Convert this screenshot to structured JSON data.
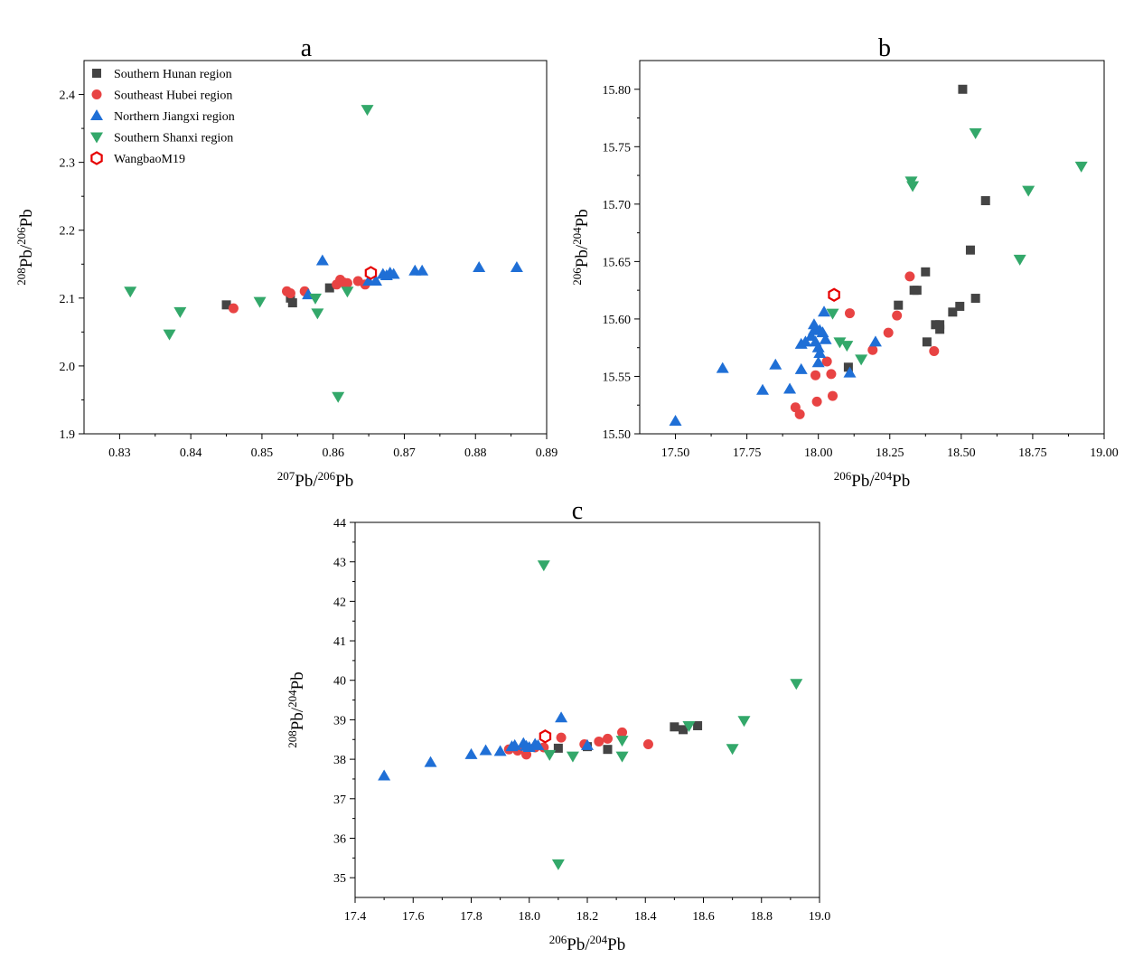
{
  "legend": [
    {
      "key": "hunan",
      "label": "Southern Hunan region",
      "marker": "square",
      "color": "#444444"
    },
    {
      "key": "hubei",
      "label": "Southeast Hubei region",
      "marker": "circle",
      "color": "#e84343"
    },
    {
      "key": "jiangxi",
      "label": "Northern Jiangxi region",
      "marker": "triangle-up",
      "color": "#1f6fd6"
    },
    {
      "key": "shanxi",
      "label": "Southern Shanxi region",
      "marker": "triangle-down",
      "color": "#33a86a"
    },
    {
      "key": "wangbao",
      "label": "WangbaoM19",
      "marker": "hexagon-open",
      "color": "#e60000"
    }
  ],
  "chart_data": [
    {
      "id": "a",
      "type": "scatter",
      "title": "a",
      "xlabel": {
        "base": "Pb/",
        "sup1": "207",
        "sup2": "206",
        "tail": "Pb"
      },
      "ylabel": {
        "sup1": "208",
        "base": "Pb/",
        "sup2": "206",
        "tail": "Pb"
      },
      "xlim": [
        0.825,
        0.89
      ],
      "ylim": [
        1.9,
        2.45
      ],
      "xticks": [
        0.83,
        0.84,
        0.85,
        0.86,
        0.87,
        0.88,
        0.89
      ],
      "xtick_labels": [
        "0.83",
        "0.84",
        "0.85",
        "0.86",
        "0.87",
        "0.88",
        "0.89"
      ],
      "yticks": [
        1.9,
        2.0,
        2.1,
        2.2,
        2.3,
        2.4
      ],
      "ytick_labels": [
        "1.9",
        "2.0",
        "2.1",
        "2.2",
        "2.3",
        "2.4"
      ],
      "legend_position": "top-left",
      "grid": false,
      "series": [
        {
          "key": "hunan",
          "name": "Southern Hunan region",
          "points": [
            [
              0.845,
              2.09
            ],
            [
              0.854,
              2.1
            ],
            [
              0.8543,
              2.093
            ],
            [
              0.8595,
              2.115
            ]
          ]
        },
        {
          "key": "hubei",
          "name": "Southeast Hubei region",
          "points": [
            [
              0.846,
              2.085
            ],
            [
              0.8535,
              2.11
            ],
            [
              0.854,
              2.107
            ],
            [
              0.856,
              2.11
            ],
            [
              0.8605,
              2.12
            ],
            [
              0.861,
              2.127
            ],
            [
              0.8615,
              2.123
            ],
            [
              0.862,
              2.122
            ],
            [
              0.8635,
              2.125
            ],
            [
              0.8645,
              2.12
            ]
          ]
        },
        {
          "key": "jiangxi",
          "name": "Northern Jiangxi region",
          "points": [
            [
              0.8585,
              2.155
            ],
            [
              0.8565,
              2.105
            ],
            [
              0.865,
              2.125
            ],
            [
              0.866,
              2.125
            ],
            [
              0.867,
              2.135
            ],
            [
              0.8675,
              2.133
            ],
            [
              0.868,
              2.137
            ],
            [
              0.8685,
              2.135
            ],
            [
              0.8715,
              2.14
            ],
            [
              0.8725,
              2.14
            ],
            [
              0.8805,
              2.145
            ],
            [
              0.8858,
              2.145
            ]
          ]
        },
        {
          "key": "shanxi",
          "name": "Southern Shanxi region",
          "points": [
            [
              0.8315,
              2.11
            ],
            [
              0.837,
              2.047
            ],
            [
              0.8385,
              2.08
            ],
            [
              0.8497,
              2.095
            ],
            [
              0.8575,
              2.1
            ],
            [
              0.8578,
              2.078
            ],
            [
              0.8607,
              1.955
            ],
            [
              0.862,
              2.11
            ],
            [
              0.8648,
              2.378
            ]
          ]
        },
        {
          "key": "wangbao",
          "name": "WangbaoM19",
          "points": [
            [
              0.8653,
              2.137
            ]
          ]
        }
      ]
    },
    {
      "id": "b",
      "type": "scatter",
      "title": "b",
      "xlabel": {
        "sup1": "206",
        "base": "Pb/",
        "sup2": "204",
        "tail": "Pb"
      },
      "ylabel": {
        "sup1": "206",
        "base": "Pb/",
        "sup2": "204",
        "tail": "Pb"
      },
      "xlim": [
        17.375,
        19.0
      ],
      "ylim": [
        15.5,
        15.825
      ],
      "xticks": [
        17.5,
        17.75,
        18.0,
        18.25,
        18.5,
        18.75,
        19.0
      ],
      "xtick_labels": [
        "17.50",
        "17.75",
        "18.00",
        "18.25",
        "18.50",
        "18.75",
        "19.00"
      ],
      "yticks": [
        15.5,
        15.55,
        15.6,
        15.65,
        15.7,
        15.75,
        15.8
      ],
      "ytick_labels": [
        "15.50",
        "15.55",
        "15.60",
        "15.65",
        "15.70",
        "15.75",
        "15.80"
      ],
      "grid": false,
      "series": [
        {
          "key": "hunan",
          "name": "Southern Hunan region",
          "points": [
            [
              18.505,
              15.8
            ],
            [
              18.585,
              15.703
            ],
            [
              18.532,
              15.66
            ],
            [
              18.375,
              15.641
            ],
            [
              18.335,
              15.625
            ],
            [
              18.345,
              15.625
            ],
            [
              18.28,
              15.612
            ],
            [
              18.55,
              15.618
            ],
            [
              18.495,
              15.611
            ],
            [
              18.47,
              15.606
            ],
            [
              18.41,
              15.595
            ],
            [
              18.425,
              15.595
            ],
            [
              18.425,
              15.591
            ],
            [
              18.38,
              15.58
            ],
            [
              18.105,
              15.558
            ]
          ]
        },
        {
          "key": "hubei",
          "name": "Southeast Hubei region",
          "points": [
            [
              18.32,
              15.637
            ],
            [
              18.11,
              15.605
            ],
            [
              18.275,
              15.603
            ],
            [
              18.245,
              15.588
            ],
            [
              18.19,
              15.573
            ],
            [
              18.405,
              15.572
            ],
            [
              18.03,
              15.563
            ],
            [
              17.99,
              15.551
            ],
            [
              18.045,
              15.552
            ],
            [
              18.05,
              15.533
            ],
            [
              17.995,
              15.528
            ],
            [
              17.92,
              15.523
            ],
            [
              17.935,
              15.517
            ]
          ]
        },
        {
          "key": "jiangxi",
          "name": "Northern Jiangxi region",
          "points": [
            [
              17.5,
              15.511
            ],
            [
              17.665,
              15.557
            ],
            [
              17.805,
              15.538
            ],
            [
              17.85,
              15.56
            ],
            [
              17.9,
              15.539
            ],
            [
              17.94,
              15.556
            ],
            [
              17.94,
              15.578
            ],
            [
              17.955,
              15.58
            ],
            [
              17.975,
              15.585
            ],
            [
              17.985,
              15.59
            ],
            [
              17.985,
              15.595
            ],
            [
              17.99,
              15.58
            ],
            [
              18.0,
              15.575
            ],
            [
              18.005,
              15.59
            ],
            [
              18.015,
              15.588
            ],
            [
              18.02,
              15.606
            ],
            [
              18.025,
              15.582
            ],
            [
              18.005,
              15.57
            ],
            [
              18.0,
              15.562
            ],
            [
              18.11,
              15.553
            ],
            [
              18.2,
              15.58
            ]
          ]
        },
        {
          "key": "shanxi",
          "name": "Southern Shanxi region",
          "points": [
            [
              18.55,
              15.762
            ],
            [
              18.92,
              15.733
            ],
            [
              18.325,
              15.72
            ],
            [
              18.33,
              15.716
            ],
            [
              18.735,
              15.712
            ],
            [
              18.705,
              15.652
            ],
            [
              18.05,
              15.605
            ],
            [
              18.075,
              15.58
            ],
            [
              18.1,
              15.577
            ],
            [
              18.15,
              15.565
            ]
          ]
        },
        {
          "key": "wangbao",
          "name": "WangbaoM19",
          "points": [
            [
              18.055,
              15.621
            ]
          ]
        }
      ]
    },
    {
      "id": "c",
      "type": "scatter",
      "title": "c",
      "xlabel": {
        "sup1": "206",
        "base": "Pb/",
        "sup2": "204",
        "tail": "Pb"
      },
      "ylabel": {
        "sup1": "208",
        "base": "Pb/",
        "sup2": "204",
        "tail": "Pb"
      },
      "xlim": [
        17.4,
        19.0
      ],
      "ylim": [
        34.5,
        44.0
      ],
      "xticks": [
        17.4,
        17.6,
        17.8,
        18.0,
        18.2,
        18.4,
        18.6,
        18.8,
        19.0
      ],
      "xtick_labels": [
        "17.4",
        "17.6",
        "17.8",
        "18.0",
        "18.2",
        "18.4",
        "18.6",
        "18.8",
        "19.0"
      ],
      "yticks": [
        35,
        36,
        37,
        38,
        39,
        40,
        41,
        42,
        43,
        44
      ],
      "ytick_labels": [
        "35",
        "36",
        "37",
        "38",
        "39",
        "40",
        "41",
        "42",
        "43",
        "44"
      ],
      "grid": false,
      "series": [
        {
          "key": "hunan",
          "name": "Southern Hunan region",
          "points": [
            [
              18.1,
              38.28
            ],
            [
              18.27,
              38.25
            ],
            [
              18.5,
              38.82
            ],
            [
              18.53,
              38.75
            ],
            [
              18.58,
              38.85
            ],
            [
              18.2,
              38.32
            ]
          ]
        },
        {
          "key": "hubei",
          "name": "Southeast Hubei region",
          "points": [
            [
              17.93,
              38.25
            ],
            [
              17.99,
              38.12
            ],
            [
              18.05,
              38.3
            ],
            [
              18.11,
              38.55
            ],
            [
              18.19,
              38.38
            ],
            [
              18.24,
              38.45
            ],
            [
              18.27,
              38.52
            ],
            [
              18.32,
              38.68
            ],
            [
              18.41,
              38.38
            ],
            [
              18.02,
              38.3
            ],
            [
              17.96,
              38.22
            ]
          ]
        },
        {
          "key": "jiangxi",
          "name": "Northern Jiangxi region",
          "points": [
            [
              17.5,
              37.58
            ],
            [
              17.66,
              37.92
            ],
            [
              17.8,
              38.12
            ],
            [
              17.85,
              38.22
            ],
            [
              17.9,
              38.2
            ],
            [
              17.94,
              38.32
            ],
            [
              17.95,
              38.35
            ],
            [
              17.98,
              38.4
            ],
            [
              17.99,
              38.33
            ],
            [
              18.0,
              38.3
            ],
            [
              18.02,
              38.38
            ],
            [
              18.03,
              38.35
            ],
            [
              18.11,
              39.05
            ],
            [
              18.2,
              38.35
            ]
          ]
        },
        {
          "key": "shanxi",
          "name": "Southern Shanxi region",
          "points": [
            [
              18.05,
              42.92
            ],
            [
              18.92,
              39.92
            ],
            [
              18.74,
              38.98
            ],
            [
              18.55,
              38.85
            ],
            [
              18.7,
              38.27
            ],
            [
              18.32,
              38.48
            ],
            [
              18.32,
              38.08
            ],
            [
              18.15,
              38.08
            ],
            [
              18.07,
              38.12
            ],
            [
              18.1,
              35.35
            ]
          ]
        },
        {
          "key": "wangbao",
          "name": "WangbaoM19",
          "points": [
            [
              18.055,
              38.58
            ]
          ]
        }
      ]
    }
  ]
}
